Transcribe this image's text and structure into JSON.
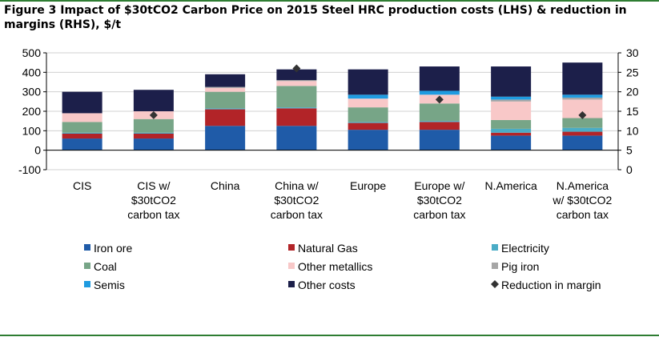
{
  "title": "Figure 3 Impact  of $30tCO2 Carbon Price on 2015 Steel HRC production costs (LHS) & reduction in margins (RHS), $/t",
  "chart_data": {
    "type": "bar",
    "stacked": true,
    "title": "Figure 3 Impact  of $30tCO2 Carbon Price on 2015 Steel HRC production costs (LHS) & reduction in margins (RHS), $/t",
    "categories": [
      [
        "CIS"
      ],
      [
        "CIS w/",
        "$30tCO2",
        "carbon tax"
      ],
      [
        "China"
      ],
      [
        "China w/",
        "$30tCO2",
        "carbon tax"
      ],
      [
        "Europe"
      ],
      [
        "Europe w/",
        "$30tCO2",
        "carbon tax"
      ],
      [
        "N.America"
      ],
      [
        "N.America",
        "w/ $30tCO2",
        "carbon tax"
      ]
    ],
    "ylim_left": [
      -100,
      500
    ],
    "yticks_left": [
      "-100",
      "0",
      "100",
      "200",
      "300",
      "400",
      "500"
    ],
    "ylim_right": [
      0,
      30
    ],
    "yticks_right": [
      "0",
      "5",
      "10",
      "15",
      "20",
      "25",
      "30"
    ],
    "grid": true,
    "legend_position": "bottom",
    "series": [
      {
        "name": "Iron ore",
        "color": "#1f5ba8",
        "values": [
          60,
          60,
          125,
          125,
          105,
          105,
          75,
          75
        ]
      },
      {
        "name": "Natural Gas",
        "color": "#b22428",
        "values": [
          25,
          25,
          85,
          90,
          35,
          40,
          15,
          20
        ]
      },
      {
        "name": "Electricity",
        "color": "#4aacc6",
        "values": [
          5,
          5,
          5,
          5,
          5,
          5,
          20,
          20
        ]
      },
      {
        "name": "Coal",
        "color": "#77a587",
        "values": [
          55,
          70,
          85,
          110,
          75,
          90,
          45,
          50
        ]
      },
      {
        "name": "Other metallics",
        "color": "#f8c8c8",
        "values": [
          45,
          40,
          20,
          25,
          45,
          45,
          95,
          95
        ]
      },
      {
        "name": "Pig iron",
        "color": "#a6a6a6",
        "values": [
          0,
          0,
          5,
          5,
          0,
          0,
          10,
          10
        ]
      },
      {
        "name": "Semis",
        "color": "#1f9be0",
        "values": [
          0,
          0,
          0,
          0,
          20,
          20,
          15,
          15
        ]
      },
      {
        "name": "Other costs",
        "color": "#1c1f4a",
        "values": [
          110,
          110,
          65,
          55,
          130,
          125,
          155,
          165
        ]
      }
    ],
    "reduction_in_margin": {
      "name": "Reduction in margin",
      "axis": "right",
      "marker": "diamond",
      "color": "#333333",
      "values": [
        null,
        14,
        null,
        26,
        null,
        18,
        null,
        14
      ]
    },
    "legend": [
      "Iron ore",
      "Natural Gas",
      "Electricity",
      "Coal",
      "Other metallics",
      "Pig iron",
      "Semis",
      "Other costs",
      "Reduction in margin"
    ]
  }
}
